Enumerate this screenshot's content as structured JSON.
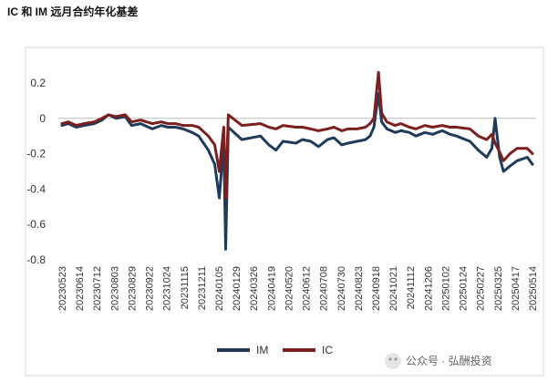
{
  "chart_data": {
    "type": "line",
    "title": "IC 和 IM 远月合约年化基差",
    "xlabel": "",
    "ylabel": "",
    "ylim": [
      -0.8,
      0.3
    ],
    "yticks": [
      0.2,
      0,
      -0.2,
      -0.4,
      -0.6,
      -0.8
    ],
    "ytick_labels": [
      "0.2",
      "0",
      "-0.2",
      "-0.4",
      "-0.6",
      "-0.8"
    ],
    "xtick_labels": [
      "20230523",
      "20230614",
      "20230712",
      "20230803",
      "20230829",
      "20230922",
      "20231024",
      "20231115",
      "20231211",
      "20240105",
      "20240129",
      "20240326",
      "20240419",
      "20240520",
      "20240612",
      "20240708",
      "20240730",
      "20240823",
      "20240918",
      "20241021",
      "20241112",
      "20241206",
      "20250102",
      "20250124",
      "20250227",
      "20250325",
      "20250417",
      "20250514"
    ],
    "grid": false,
    "legend_position": "bottom",
    "colors": {
      "IM": "#1f3b5c",
      "IC": "#7b1f1f"
    },
    "x": [
      "20230523",
      "20230602",
      "20230614",
      "20230626",
      "20230712",
      "20230724",
      "20230803",
      "20230815",
      "20230829",
      "20230908",
      "20230922",
      "20231010",
      "20231024",
      "20231103",
      "20231115",
      "20231127",
      "20231211",
      "20231221",
      "20240105",
      "20240115",
      "20240122",
      "20240129",
      "20240201",
      "20240205",
      "20240226",
      "20240326",
      "20240408",
      "20240419",
      "20240430",
      "20240520",
      "20240530",
      "20240612",
      "20240624",
      "20240708",
      "20240718",
      "20240730",
      "20240809",
      "20240823",
      "20240905",
      "20240912",
      "20240918",
      "20240925",
      "20240930",
      "20241008",
      "20241021",
      "20241030",
      "20241112",
      "20241122",
      "20241206",
      "20241218",
      "20250102",
      "20250114",
      "20250124",
      "20250214",
      "20250227",
      "20250312",
      "20250320",
      "20250325",
      "20250401",
      "20250407",
      "20250417",
      "20250428",
      "20250514",
      "20250522"
    ],
    "series": [
      {
        "name": "IM",
        "values": [
          -0.04,
          -0.03,
          -0.05,
          -0.04,
          -0.03,
          -0.01,
          0.02,
          0.0,
          0.01,
          -0.04,
          -0.03,
          -0.06,
          -0.04,
          -0.05,
          -0.05,
          -0.06,
          -0.08,
          -0.1,
          -0.18,
          -0.26,
          -0.45,
          -0.13,
          -0.74,
          -0.05,
          -0.12,
          -0.1,
          -0.15,
          -0.18,
          -0.13,
          -0.14,
          -0.12,
          -0.13,
          -0.16,
          -0.12,
          -0.11,
          -0.15,
          -0.14,
          -0.13,
          -0.12,
          -0.1,
          -0.05,
          0.14,
          -0.02,
          -0.06,
          -0.08,
          -0.07,
          -0.08,
          -0.1,
          -0.08,
          -0.09,
          -0.07,
          -0.09,
          -0.1,
          -0.13,
          -0.18,
          -0.22,
          -0.17,
          0.0,
          -0.22,
          -0.3,
          -0.27,
          -0.24,
          -0.22,
          -0.26
        ]
      },
      {
        "name": "IC",
        "values": [
          -0.03,
          -0.02,
          -0.04,
          -0.03,
          -0.02,
          0.0,
          0.02,
          0.01,
          0.02,
          -0.02,
          -0.01,
          -0.03,
          -0.02,
          -0.03,
          -0.03,
          -0.04,
          -0.04,
          -0.05,
          -0.1,
          -0.15,
          -0.3,
          -0.05,
          -0.45,
          0.02,
          -0.04,
          -0.03,
          -0.05,
          -0.06,
          -0.04,
          -0.05,
          -0.05,
          -0.06,
          -0.07,
          -0.06,
          -0.05,
          -0.07,
          -0.06,
          -0.06,
          -0.05,
          -0.03,
          0.0,
          0.26,
          0.03,
          -0.02,
          -0.04,
          -0.03,
          -0.05,
          -0.06,
          -0.04,
          -0.05,
          -0.04,
          -0.05,
          -0.05,
          -0.06,
          -0.1,
          -0.12,
          -0.09,
          -0.14,
          -0.19,
          -0.24,
          -0.2,
          -0.17,
          -0.17,
          -0.2
        ]
      }
    ]
  },
  "watermark": {
    "text": "公众号 · 弘酬投资"
  }
}
